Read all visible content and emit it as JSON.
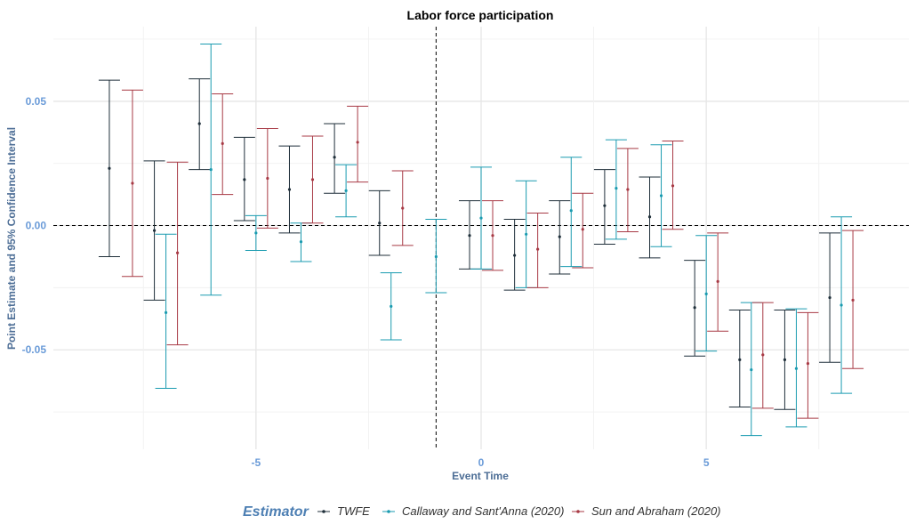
{
  "chart_data": {
    "type": "errorbar",
    "title": "Labor force participation",
    "xlabel": "Event Time",
    "ylabel": "Point Estimate and 95% Confidence Interval",
    "xlim": [
      -9.5,
      9.5
    ],
    "ylim": [
      -0.09,
      0.08
    ],
    "x_ticks": [
      -5,
      0,
      5
    ],
    "x_tick_labels": [
      "-5",
      "0",
      "5"
    ],
    "y_ticks": [
      -0.05,
      0.0,
      0.05
    ],
    "y_tick_labels": [
      "-0.05",
      "0.00",
      "0.05"
    ],
    "grid": true,
    "reference_lines": {
      "y": 0,
      "x": -1,
      "style": "dashed"
    },
    "legend": {
      "title": "Estimator",
      "position": "bottom"
    },
    "series": [
      {
        "name": "TWFE",
        "color": "#1f2f3a",
        "points": [
          {
            "x": -8,
            "est": 0.023,
            "lo": -0.0125,
            "hi": 0.0585
          },
          {
            "x": -7,
            "est": -0.002,
            "lo": -0.03,
            "hi": 0.026
          },
          {
            "x": -6,
            "est": 0.041,
            "lo": 0.0225,
            "hi": 0.059
          },
          {
            "x": -5,
            "est": 0.0185,
            "lo": 0.002,
            "hi": 0.0355
          },
          {
            "x": -4,
            "est": 0.0145,
            "lo": -0.003,
            "hi": 0.032
          },
          {
            "x": -3,
            "est": 0.0275,
            "lo": 0.013,
            "hi": 0.041
          },
          {
            "x": -2,
            "est": 0.001,
            "lo": -0.012,
            "hi": 0.014
          },
          {
            "x": 0,
            "est": -0.004,
            "lo": -0.0175,
            "hi": 0.01
          },
          {
            "x": 1,
            "est": -0.012,
            "lo": -0.026,
            "hi": 0.0025
          },
          {
            "x": 2,
            "est": -0.0045,
            "lo": -0.0195,
            "hi": 0.01
          },
          {
            "x": 3,
            "est": 0.008,
            "lo": -0.0075,
            "hi": 0.0225
          },
          {
            "x": 4,
            "est": 0.0035,
            "lo": -0.013,
            "hi": 0.0195
          },
          {
            "x": 5,
            "est": -0.033,
            "lo": -0.0525,
            "hi": -0.014
          },
          {
            "x": 6,
            "est": -0.054,
            "lo": -0.073,
            "hi": -0.034
          },
          {
            "x": 7,
            "est": -0.054,
            "lo": -0.074,
            "hi": -0.034
          },
          {
            "x": 8,
            "est": -0.029,
            "lo": -0.055,
            "hi": -0.003
          }
        ]
      },
      {
        "name": "Callaway and Sant'Anna (2020)",
        "color": "#1a9bb0",
        "points": [
          {
            "x": -7,
            "est": -0.035,
            "lo": -0.0655,
            "hi": -0.0035
          },
          {
            "x": -6,
            "est": 0.0225,
            "lo": -0.028,
            "hi": 0.073
          },
          {
            "x": -5,
            "est": -0.003,
            "lo": -0.01,
            "hi": 0.004
          },
          {
            "x": -4,
            "est": -0.0065,
            "lo": -0.0145,
            "hi": 0.001
          },
          {
            "x": -3,
            "est": 0.014,
            "lo": 0.0035,
            "hi": 0.0245
          },
          {
            "x": -2,
            "est": -0.0325,
            "lo": -0.046,
            "hi": -0.019
          },
          {
            "x": -1,
            "est": -0.0125,
            "lo": -0.027,
            "hi": 0.0025
          },
          {
            "x": 0,
            "est": 0.003,
            "lo": -0.0175,
            "hi": 0.0235
          },
          {
            "x": 1,
            "est": -0.0035,
            "lo": -0.025,
            "hi": 0.018
          },
          {
            "x": 2,
            "est": 0.006,
            "lo": -0.0165,
            "hi": 0.0275
          },
          {
            "x": 3,
            "est": 0.015,
            "lo": -0.0055,
            "hi": 0.0345
          },
          {
            "x": 4,
            "est": 0.012,
            "lo": -0.0085,
            "hi": 0.0325
          },
          {
            "x": 5,
            "est": -0.0275,
            "lo": -0.0505,
            "hi": -0.004
          },
          {
            "x": 6,
            "est": -0.058,
            "lo": -0.0845,
            "hi": -0.031
          },
          {
            "x": 7,
            "est": -0.0575,
            "lo": -0.081,
            "hi": -0.0335
          },
          {
            "x": 8,
            "est": -0.032,
            "lo": -0.0675,
            "hi": 0.0035
          }
        ]
      },
      {
        "name": "Sun and Abraham (2020)",
        "color": "#a83a45",
        "points": [
          {
            "x": -8,
            "est": 0.017,
            "lo": -0.0205,
            "hi": 0.0545
          },
          {
            "x": -7,
            "est": -0.011,
            "lo": -0.048,
            "hi": 0.0255
          },
          {
            "x": -6,
            "est": 0.033,
            "lo": 0.0125,
            "hi": 0.053
          },
          {
            "x": -5,
            "est": 0.019,
            "lo": -0.001,
            "hi": 0.039
          },
          {
            "x": -4,
            "est": 0.0185,
            "lo": 0.001,
            "hi": 0.036
          },
          {
            "x": -3,
            "est": 0.0335,
            "lo": 0.0175,
            "hi": 0.048
          },
          {
            "x": -2,
            "est": 0.007,
            "lo": -0.008,
            "hi": 0.022
          },
          {
            "x": 0,
            "est": -0.004,
            "lo": -0.018,
            "hi": 0.01
          },
          {
            "x": 1,
            "est": -0.0095,
            "lo": -0.025,
            "hi": 0.005
          },
          {
            "x": 2,
            "est": -0.0015,
            "lo": -0.017,
            "hi": 0.013
          },
          {
            "x": 3,
            "est": 0.0145,
            "lo": -0.0025,
            "hi": 0.031
          },
          {
            "x": 4,
            "est": 0.016,
            "lo": -0.0015,
            "hi": 0.034
          },
          {
            "x": 5,
            "est": -0.0225,
            "lo": -0.0425,
            "hi": -0.003
          },
          {
            "x": 6,
            "est": -0.052,
            "lo": -0.0735,
            "hi": -0.031
          },
          {
            "x": 7,
            "est": -0.0555,
            "lo": -0.0775,
            "hi": -0.035
          },
          {
            "x": 8,
            "est": -0.03,
            "lo": -0.0575,
            "hi": -0.002
          }
        ]
      }
    ]
  }
}
